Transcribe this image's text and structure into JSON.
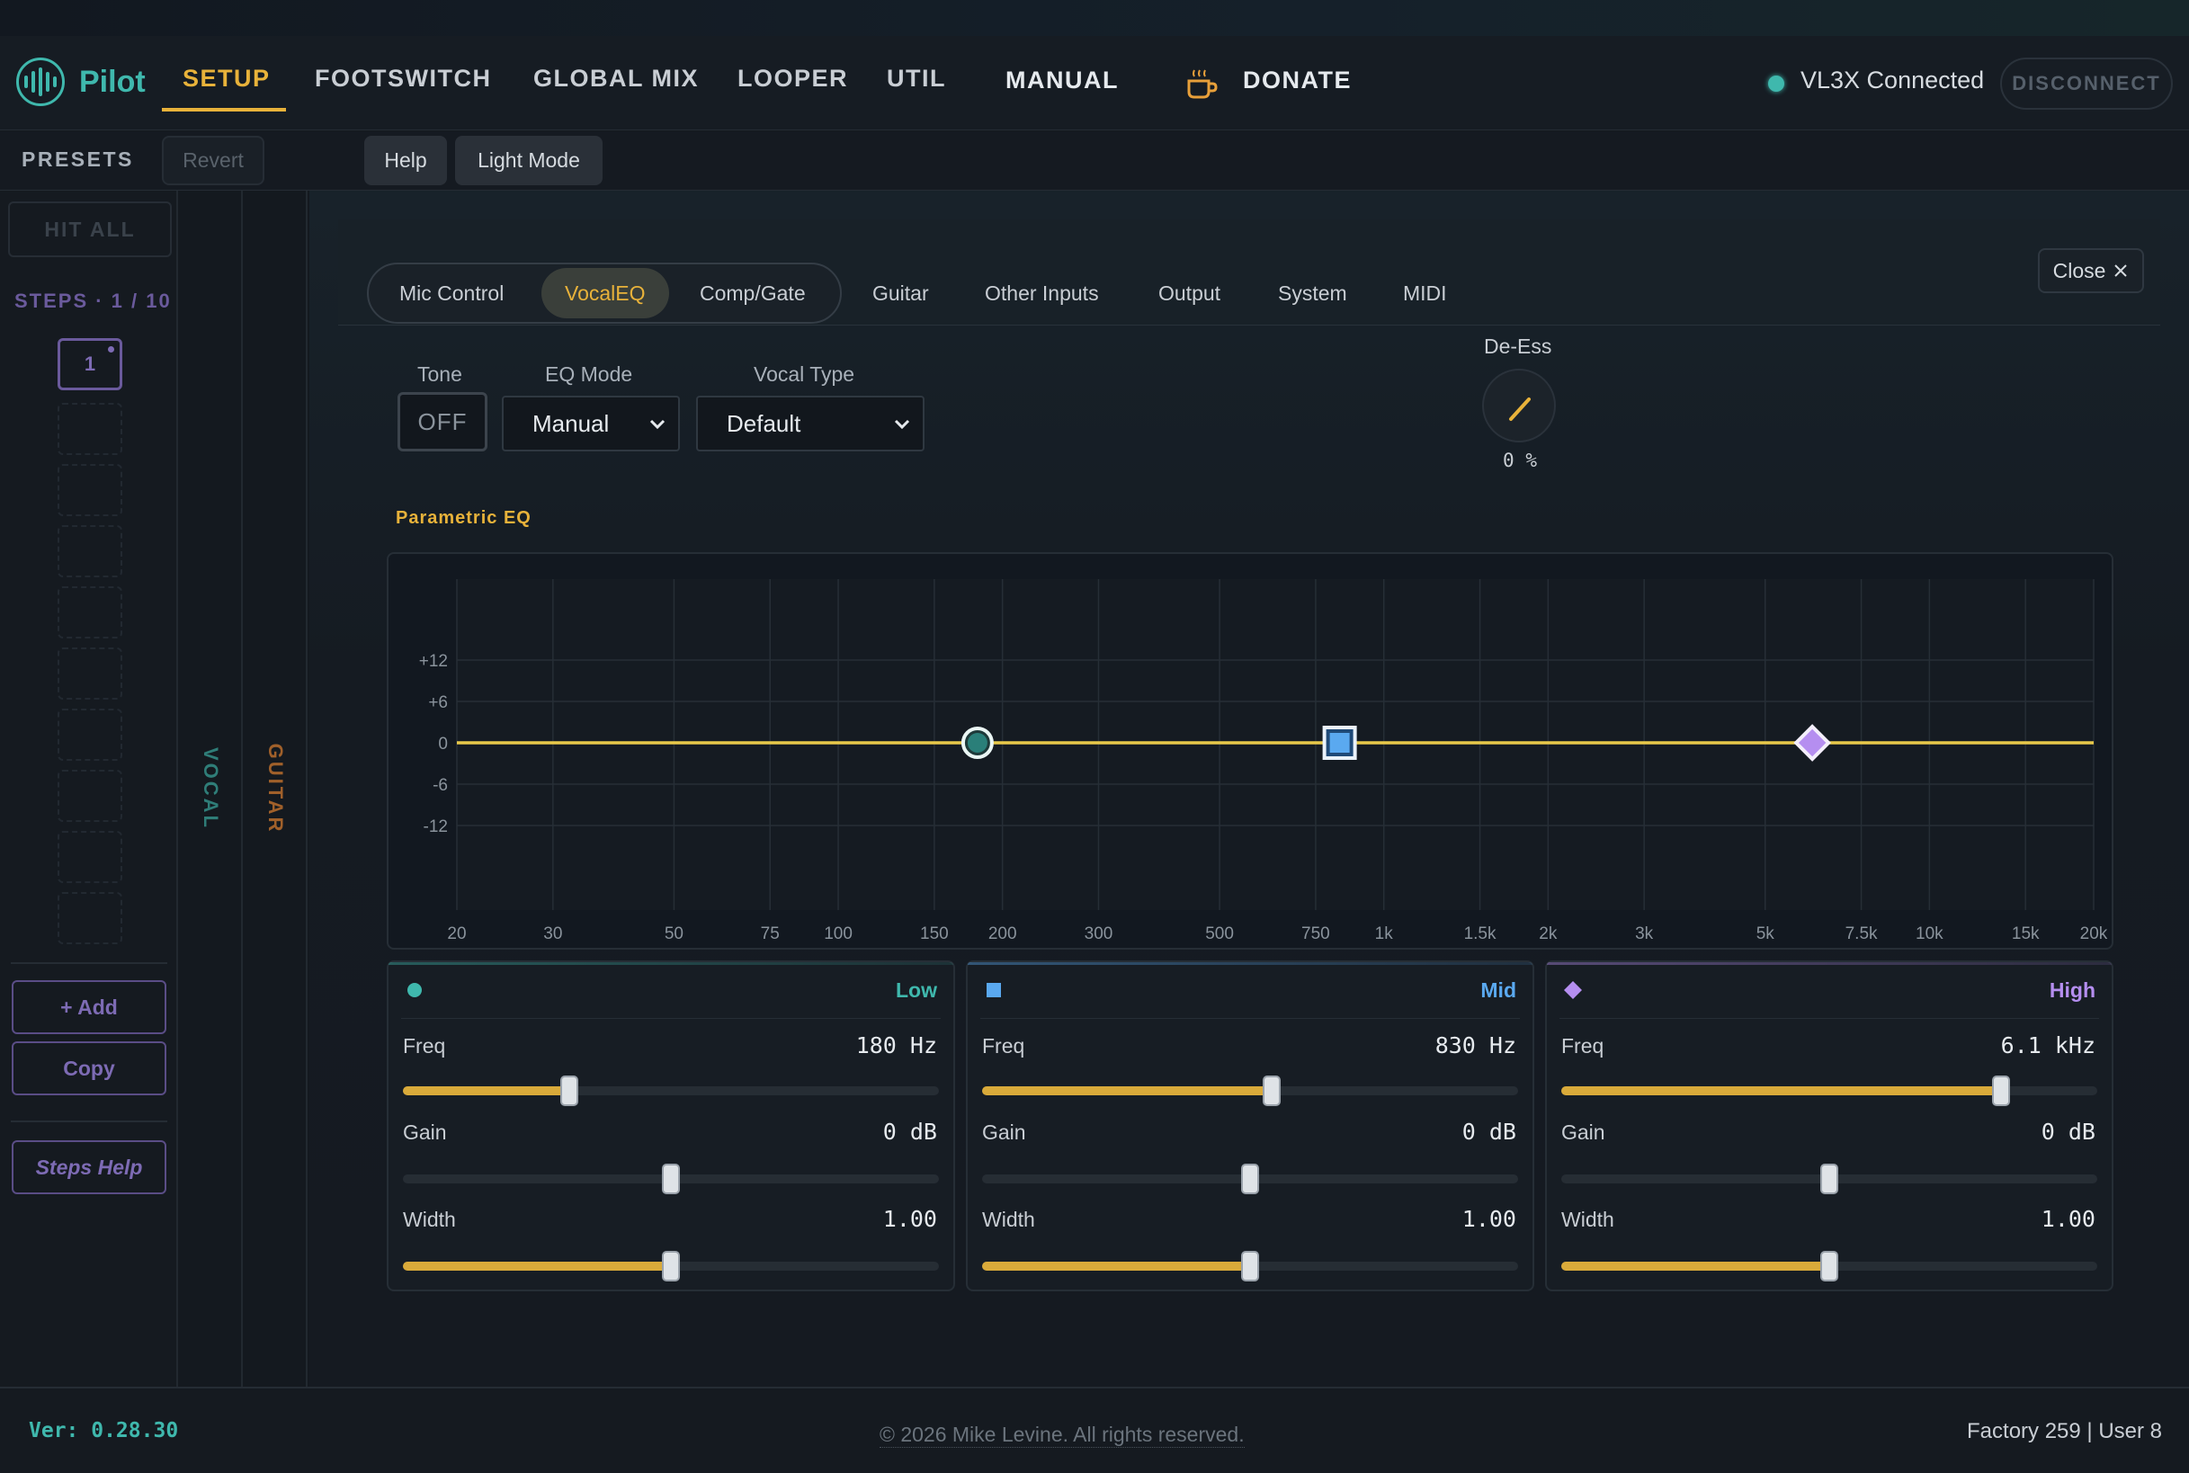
{
  "app": {
    "name": "Pilot"
  },
  "nav": {
    "items": [
      {
        "label": "SETUP",
        "active": true
      },
      {
        "label": "FOOTSWITCH"
      },
      {
        "label": "GLOBAL MIX"
      },
      {
        "label": "LOOPER"
      },
      {
        "label": "UTIL"
      },
      {
        "label": "MANUAL"
      }
    ],
    "donate_label": "DONATE",
    "connection": {
      "status": "VL3X Connected",
      "disconnect_label": "DISCONNECT"
    }
  },
  "subbar": {
    "presets_label": "PRESETS",
    "revert_label": "Revert",
    "help_label": "Help",
    "light_mode_label": "Light Mode"
  },
  "sidebar": {
    "hit_all_label": "HIT ALL",
    "steps_label": "STEPS · 1 / 10",
    "active_step": "1",
    "add_label": "+ Add",
    "copy_label": "Copy",
    "steps_help_label": "Steps Help"
  },
  "vtabs": {
    "vocal": "VOCAL",
    "guitar": "GUITAR"
  },
  "panel": {
    "tabs": [
      {
        "label": "Mic Control"
      },
      {
        "label": "VocalEQ",
        "active": true
      },
      {
        "label": "Comp/Gate"
      },
      {
        "label": "Guitar"
      },
      {
        "label": "Other Inputs"
      },
      {
        "label": "Output"
      },
      {
        "label": "System"
      },
      {
        "label": "MIDI"
      }
    ],
    "close_label": "Close",
    "tone": {
      "label": "Tone",
      "value": "OFF"
    },
    "eq_mode": {
      "label": "EQ Mode",
      "value": "Manual"
    },
    "vocal_type": {
      "label": "Vocal Type",
      "value": "Default"
    },
    "de_ess": {
      "label": "De-Ess",
      "value": "0 %",
      "level": 0
    }
  },
  "eq": {
    "title": "Parametric EQ",
    "freq_ticks": [
      "20",
      "30",
      "50",
      "75",
      "100",
      "150",
      "200",
      "300",
      "500",
      "750",
      "1k",
      "1.5k",
      "2k",
      "3k",
      "5k",
      "7.5k",
      "10k",
      "15k",
      "20k"
    ],
    "freq_values": [
      20,
      30,
      50,
      75,
      100,
      150,
      200,
      300,
      500,
      750,
      1000,
      1500,
      2000,
      3000,
      5000,
      7500,
      10000,
      15000,
      20000
    ],
    "gain_ticks": [
      "+12",
      "+6",
      "0",
      "-6",
      "-12"
    ],
    "gain_values": [
      12,
      6,
      0,
      -6,
      -12
    ],
    "curve_color": "#e8c94a",
    "bands": [
      {
        "name": "Low",
        "marker": "circle",
        "color": "#3fb8ad",
        "freq_hz": 180,
        "freq": "180 Hz",
        "gain": "0 dB",
        "width": "1.00",
        "freq_pos": 0.31,
        "gain_pos": 0.5,
        "width_pos": 0.5
      },
      {
        "name": "Mid",
        "marker": "square",
        "color": "#5aa9f0",
        "freq_hz": 830,
        "freq": "830 Hz",
        "gain": "0 dB",
        "width": "1.00",
        "freq_pos": 0.54,
        "gain_pos": 0.5,
        "width_pos": 0.5
      },
      {
        "name": "High",
        "marker": "diamond",
        "color": "#b58ef0",
        "freq_hz": 6100,
        "freq": "6.1 kHz",
        "gain": "0 dB",
        "width": "1.00",
        "freq_pos": 0.82,
        "gain_pos": 0.5,
        "width_pos": 0.5
      }
    ],
    "labels": {
      "freq": "Freq",
      "gain": "Gain",
      "width": "Width"
    }
  },
  "footer": {
    "version": "Ver: 0.28.30",
    "copyright": "© 2026 Mike Levine. All rights reserved.",
    "presets": "Factory 259 | User 8"
  }
}
